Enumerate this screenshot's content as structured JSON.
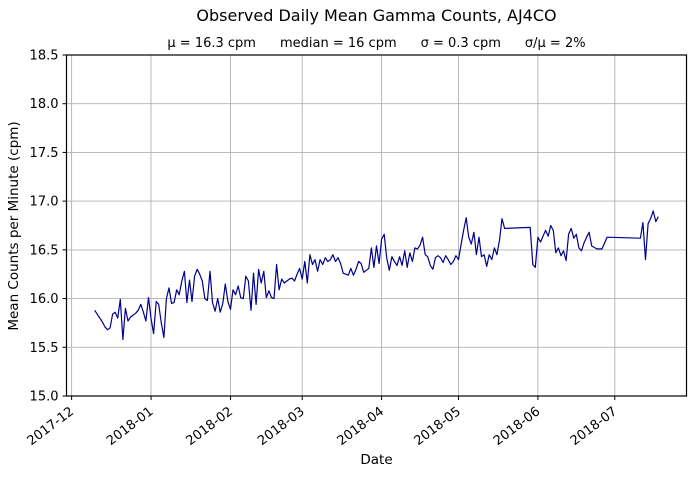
{
  "figure": {
    "title": "Observed Daily Mean Gamma Counts, AJ4CO",
    "subtitle_parts": [
      "μ = 16.3 cpm",
      "median = 16 cpm",
      "σ = 0.3 cpm",
      "σ/μ = 2%"
    ],
    "xlabel": "Date",
    "ylabel": "Mean Counts per Minute (cpm)"
  },
  "chart_data": {
    "type": "line",
    "title": "Observed Daily Mean Gamma Counts, AJ4CO",
    "subtitle": "μ = 16.3 cpm     median = 16 cpm     σ = 0.3 cpm     σ/μ = 2%",
    "stats": {
      "mu_cpm": 16.3,
      "median_cpm": 16,
      "sigma_cpm": 0.3,
      "sigma_over_mu_pct": 2
    },
    "xlabel": "Date",
    "ylabel": "Mean Counts per Minute (cpm)",
    "grid": true,
    "legend": "none",
    "line_color": "#00008B",
    "grid_color": "#b0b0b0",
    "ylim": [
      15.0,
      18.5
    ],
    "xlim": [
      "2017-11-29",
      "2018-07-29"
    ],
    "y_ticks": [
      {
        "value": 15.0,
        "label": "15.0"
      },
      {
        "value": 15.5,
        "label": "15.5"
      },
      {
        "value": 16.0,
        "label": "16.0"
      },
      {
        "value": 16.5,
        "label": "16.5"
      },
      {
        "value": 17.0,
        "label": "17.0"
      },
      {
        "value": 17.5,
        "label": "17.5"
      },
      {
        "value": 18.0,
        "label": "18.0"
      },
      {
        "value": 18.5,
        "label": "18.5"
      }
    ],
    "x_ticks": [
      {
        "date": "2017-12-01",
        "label": "2017-12"
      },
      {
        "date": "2018-01-01",
        "label": "2018-01"
      },
      {
        "date": "2018-02-01",
        "label": "2018-02"
      },
      {
        "date": "2018-03-01",
        "label": "2018-03"
      },
      {
        "date": "2018-04-01",
        "label": "2018-04"
      },
      {
        "date": "2018-05-01",
        "label": "2018-05"
      },
      {
        "date": "2018-06-01",
        "label": "2018-06"
      },
      {
        "date": "2018-07-01",
        "label": "2018-07"
      }
    ],
    "series": [
      {
        "name": "daily-mean-gamma-counts",
        "points": [
          [
            "2017-12-10",
            15.88
          ],
          [
            "2017-12-11",
            15.84
          ],
          [
            "2017-12-12",
            15.8
          ],
          [
            "2017-12-13",
            15.76
          ],
          [
            "2017-12-14",
            15.71
          ],
          [
            "2017-12-15",
            15.68
          ],
          [
            "2017-12-16",
            15.7
          ],
          [
            "2017-12-17",
            15.84
          ],
          [
            "2017-12-18",
            15.86
          ],
          [
            "2017-12-19",
            15.8
          ],
          [
            "2017-12-20",
            15.99
          ],
          [
            "2017-12-21",
            15.58
          ],
          [
            "2017-12-22",
            15.9
          ],
          [
            "2017-12-23",
            15.77
          ],
          [
            "2017-12-24",
            15.81
          ],
          [
            "2017-12-25",
            15.83
          ],
          [
            "2017-12-26",
            15.85
          ],
          [
            "2017-12-27",
            15.88
          ],
          [
            "2017-12-28",
            15.94
          ],
          [
            "2017-12-29",
            15.86
          ],
          [
            "2017-12-30",
            15.77
          ],
          [
            "2017-12-31",
            16.01
          ],
          [
            "2018-01-01",
            15.8
          ],
          [
            "2018-01-02",
            15.64
          ],
          [
            "2018-01-03",
            15.97
          ],
          [
            "2018-01-04",
            15.94
          ],
          [
            "2018-01-05",
            15.75
          ],
          [
            "2018-01-06",
            15.6
          ],
          [
            "2018-01-07",
            16.0
          ],
          [
            "2018-01-08",
            16.11
          ],
          [
            "2018-01-09",
            15.95
          ],
          [
            "2018-01-10",
            15.96
          ],
          [
            "2018-01-11",
            16.09
          ],
          [
            "2018-01-12",
            16.04
          ],
          [
            "2018-01-13",
            16.18
          ],
          [
            "2018-01-14",
            16.28
          ],
          [
            "2018-01-15",
            15.96
          ],
          [
            "2018-01-16",
            16.19
          ],
          [
            "2018-01-17",
            15.97
          ],
          [
            "2018-01-18",
            16.23
          ],
          [
            "2018-01-19",
            16.3
          ],
          [
            "2018-01-20",
            16.25
          ],
          [
            "2018-01-21",
            16.18
          ],
          [
            "2018-01-22",
            16.0
          ],
          [
            "2018-01-23",
            15.98
          ],
          [
            "2018-01-24",
            16.28
          ],
          [
            "2018-01-25",
            15.96
          ],
          [
            "2018-01-26",
            15.87
          ],
          [
            "2018-01-27",
            16.0
          ],
          [
            "2018-01-28",
            15.86
          ],
          [
            "2018-01-29",
            15.95
          ],
          [
            "2018-01-30",
            16.15
          ],
          [
            "2018-01-31",
            15.97
          ],
          [
            "2018-02-01",
            15.89
          ],
          [
            "2018-02-02",
            16.09
          ],
          [
            "2018-02-03",
            16.04
          ],
          [
            "2018-02-04",
            16.13
          ],
          [
            "2018-02-05",
            16.01
          ],
          [
            "2018-02-06",
            16.0
          ],
          [
            "2018-02-07",
            16.23
          ],
          [
            "2018-02-08",
            16.18
          ],
          [
            "2018-02-09",
            15.88
          ],
          [
            "2018-02-10",
            16.26
          ],
          [
            "2018-02-11",
            15.94
          ],
          [
            "2018-02-12",
            16.3
          ],
          [
            "2018-02-13",
            16.16
          ],
          [
            "2018-02-14",
            16.28
          ],
          [
            "2018-02-15",
            16.01
          ],
          [
            "2018-02-16",
            16.08
          ],
          [
            "2018-02-17",
            16.01
          ],
          [
            "2018-02-18",
            16.0
          ],
          [
            "2018-02-19",
            16.35
          ],
          [
            "2018-02-20",
            16.09
          ],
          [
            "2018-02-21",
            16.2
          ],
          [
            "2018-02-22",
            16.16
          ],
          [
            "2018-02-23",
            16.18
          ],
          [
            "2018-02-24",
            16.2
          ],
          [
            "2018-02-25",
            16.21
          ],
          [
            "2018-02-26",
            16.18
          ],
          [
            "2018-02-27",
            16.25
          ],
          [
            "2018-02-28",
            16.31
          ],
          [
            "2018-03-01",
            16.2
          ],
          [
            "2018-03-02",
            16.38
          ],
          [
            "2018-03-03",
            16.16
          ],
          [
            "2018-03-04",
            16.45
          ],
          [
            "2018-03-05",
            16.35
          ],
          [
            "2018-03-06",
            16.4
          ],
          [
            "2018-03-07",
            16.28
          ],
          [
            "2018-03-08",
            16.4
          ],
          [
            "2018-03-09",
            16.35
          ],
          [
            "2018-03-10",
            16.42
          ],
          [
            "2018-03-11",
            16.38
          ],
          [
            "2018-03-12",
            16.4
          ],
          [
            "2018-03-13",
            16.45
          ],
          [
            "2018-03-14",
            16.38
          ],
          [
            "2018-03-15",
            16.42
          ],
          [
            "2018-03-16",
            16.36
          ],
          [
            "2018-03-17",
            16.26
          ],
          [
            "2018-03-18",
            16.25
          ],
          [
            "2018-03-19",
            16.24
          ],
          [
            "2018-03-20",
            16.31
          ],
          [
            "2018-03-21",
            16.24
          ],
          [
            "2018-03-22",
            16.3
          ],
          [
            "2018-03-23",
            16.38
          ],
          [
            "2018-03-24",
            16.36
          ],
          [
            "2018-03-25",
            16.27
          ],
          [
            "2018-03-26",
            16.29
          ],
          [
            "2018-03-27",
            16.31
          ],
          [
            "2018-03-28",
            16.52
          ],
          [
            "2018-03-29",
            16.32
          ],
          [
            "2018-03-30",
            16.54
          ],
          [
            "2018-03-31",
            16.36
          ],
          [
            "2018-04-01",
            16.61
          ],
          [
            "2018-04-02",
            16.66
          ],
          [
            "2018-04-03",
            16.42
          ],
          [
            "2018-04-04",
            16.29
          ],
          [
            "2018-04-05",
            16.43
          ],
          [
            "2018-04-06",
            16.38
          ],
          [
            "2018-04-07",
            16.34
          ],
          [
            "2018-04-08",
            16.43
          ],
          [
            "2018-04-09",
            16.34
          ],
          [
            "2018-04-10",
            16.49
          ],
          [
            "2018-04-11",
            16.32
          ],
          [
            "2018-04-12",
            16.47
          ],
          [
            "2018-04-13",
            16.38
          ],
          [
            "2018-04-14",
            16.52
          ],
          [
            "2018-04-15",
            16.51
          ],
          [
            "2018-04-16",
            16.55
          ],
          [
            "2018-04-17",
            16.63
          ],
          [
            "2018-04-18",
            16.45
          ],
          [
            "2018-04-19",
            16.43
          ],
          [
            "2018-04-20",
            16.34
          ],
          [
            "2018-04-21",
            16.3
          ],
          [
            "2018-04-22",
            16.42
          ],
          [
            "2018-04-23",
            16.44
          ],
          [
            "2018-04-24",
            16.42
          ],
          [
            "2018-04-25",
            16.37
          ],
          [
            "2018-04-26",
            16.44
          ],
          [
            "2018-04-27",
            16.4
          ],
          [
            "2018-04-28",
            16.35
          ],
          [
            "2018-04-29",
            16.38
          ],
          [
            "2018-04-30",
            16.44
          ],
          [
            "2018-05-01",
            16.4
          ],
          [
            "2018-05-02",
            16.55
          ],
          [
            "2018-05-03",
            16.7
          ],
          [
            "2018-05-04",
            16.83
          ],
          [
            "2018-05-05",
            16.63
          ],
          [
            "2018-05-06",
            16.56
          ],
          [
            "2018-05-07",
            16.68
          ],
          [
            "2018-05-08",
            16.45
          ],
          [
            "2018-05-09",
            16.63
          ],
          [
            "2018-05-10",
            16.43
          ],
          [
            "2018-05-11",
            16.45
          ],
          [
            "2018-05-12",
            16.33
          ],
          [
            "2018-05-13",
            16.45
          ],
          [
            "2018-05-14",
            16.4
          ],
          [
            "2018-05-15",
            16.52
          ],
          [
            "2018-05-16",
            16.45
          ],
          [
            "2018-05-17",
            16.6
          ],
          [
            "2018-05-18",
            16.82
          ],
          [
            "2018-05-19",
            16.72
          ],
          [
            "2018-05-29",
            16.73
          ],
          [
            "2018-05-30",
            16.35
          ],
          [
            "2018-05-31",
            16.32
          ],
          [
            "2018-06-01",
            16.63
          ],
          [
            "2018-06-02",
            16.58
          ],
          [
            "2018-06-03",
            16.64
          ],
          [
            "2018-06-04",
            16.7
          ],
          [
            "2018-06-05",
            16.64
          ],
          [
            "2018-06-06",
            16.75
          ],
          [
            "2018-06-07",
            16.7
          ],
          [
            "2018-06-08",
            16.47
          ],
          [
            "2018-06-09",
            16.52
          ],
          [
            "2018-06-10",
            16.44
          ],
          [
            "2018-06-11",
            16.49
          ],
          [
            "2018-06-12",
            16.39
          ],
          [
            "2018-06-13",
            16.66
          ],
          [
            "2018-06-14",
            16.72
          ],
          [
            "2018-06-15",
            16.62
          ],
          [
            "2018-06-16",
            16.66
          ],
          [
            "2018-06-17",
            16.52
          ],
          [
            "2018-06-18",
            16.49
          ],
          [
            "2018-06-19",
            16.57
          ],
          [
            "2018-06-20",
            16.63
          ],
          [
            "2018-06-21",
            16.68
          ],
          [
            "2018-06-22",
            16.54
          ],
          [
            "2018-06-24",
            16.51
          ],
          [
            "2018-06-26",
            16.51
          ],
          [
            "2018-06-28",
            16.63
          ],
          [
            "2018-07-11",
            16.62
          ],
          [
            "2018-07-12",
            16.78
          ],
          [
            "2018-07-13",
            16.4
          ],
          [
            "2018-07-14",
            16.77
          ],
          [
            "2018-07-15",
            16.82
          ],
          [
            "2018-07-16",
            16.9
          ],
          [
            "2018-07-17",
            16.79
          ],
          [
            "2018-07-18",
            16.84
          ]
        ]
      }
    ]
  }
}
